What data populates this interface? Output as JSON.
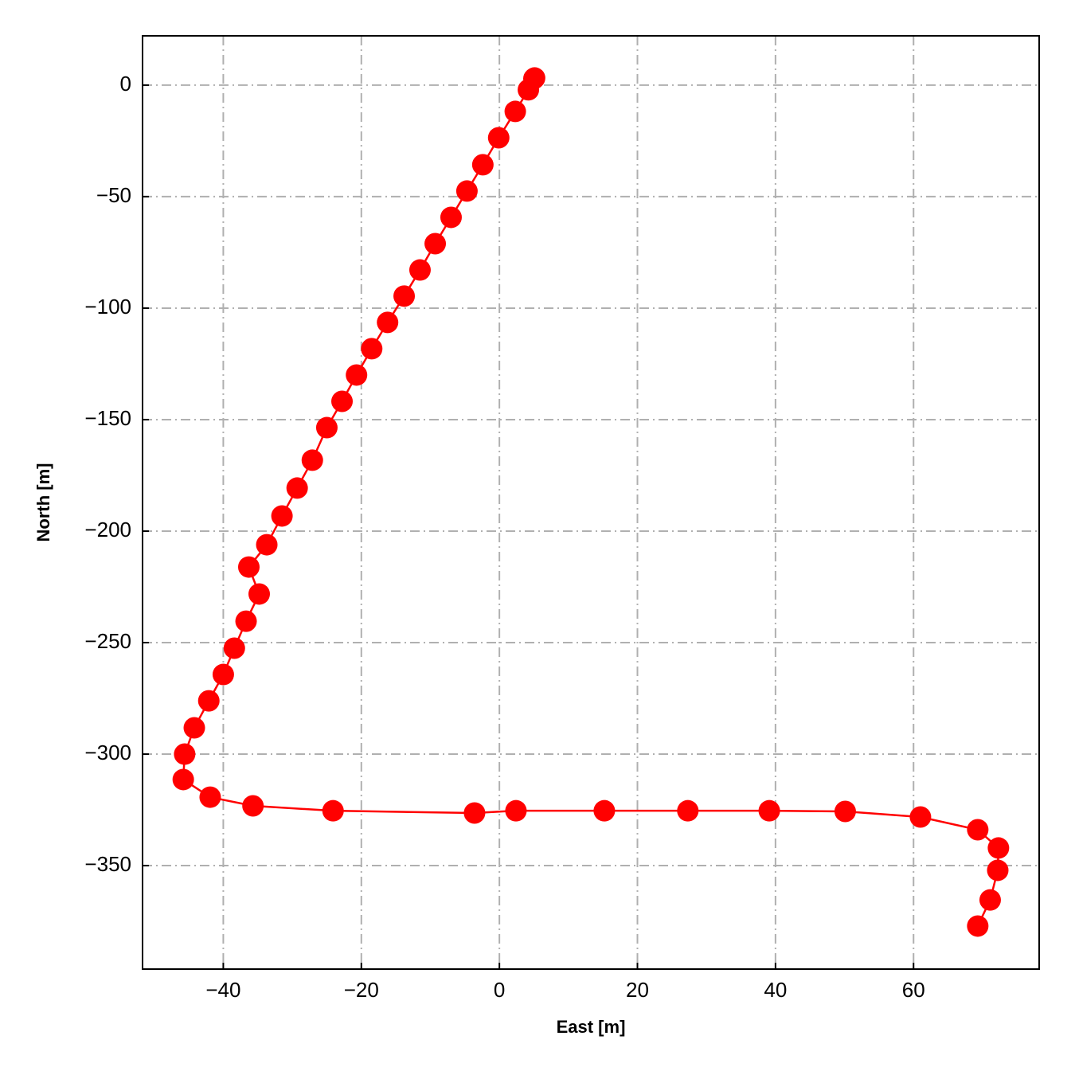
{
  "chart_data": {
    "type": "line",
    "x_label": "East [m]",
    "y_label": "North [m]",
    "x": [
      5.0,
      5.1,
      4.2,
      2.3,
      -0.1,
      -2.4,
      -4.7,
      -7.0,
      -9.3,
      -11.5,
      -13.8,
      -16.2,
      -18.5,
      -20.7,
      -22.8,
      -25.0,
      -27.1,
      -29.3,
      -31.5,
      -33.7,
      -36.3,
      -34.8,
      -36.7,
      -38.4,
      -40.0,
      -42.1,
      -44.2,
      -45.6,
      -45.8,
      -41.9,
      -35.7,
      -24.1,
      -3.6,
      2.4,
      15.2,
      27.3,
      39.1,
      50.1,
      61.0,
      69.3,
      72.3,
      72.2,
      71.1,
      69.3
    ],
    "values": [
      2.9,
      3.2,
      -2.1,
      -11.8,
      -23.6,
      -35.7,
      -47.5,
      -59.3,
      -71.1,
      -82.9,
      -94.6,
      -106.4,
      -118.2,
      -130.0,
      -141.8,
      -153.6,
      -168.2,
      -180.7,
      -193.2,
      -206.1,
      -216.1,
      -228.2,
      -240.4,
      -252.5,
      -264.3,
      -276.1,
      -288.2,
      -300.0,
      -311.4,
      -319.3,
      -323.2,
      -325.4,
      -326.4,
      -325.4,
      -325.4,
      -325.4,
      -325.4,
      -325.7,
      -328.2,
      -333.9,
      -342.1,
      -352.1,
      -365.4,
      -377.1
    ],
    "color": "#ff0000",
    "markers": true,
    "xlim": [
      -51.7,
      78.2
    ],
    "xticks": [
      {
        "value": -40,
        "label": "−40"
      },
      {
        "value": -20,
        "label": "−20"
      },
      0,
      20,
      40,
      60
    ],
    "ylim": [
      -396.4,
      22.1
    ],
    "yticks": [
      0,
      {
        "value": -50,
        "label": "−50"
      },
      {
        "value": -100,
        "label": "−100"
      },
      {
        "value": -150,
        "label": "−150"
      },
      {
        "value": -200,
        "label": "−200"
      },
      {
        "value": -250,
        "label": "−250"
      },
      {
        "value": -300,
        "label": "−300"
      },
      {
        "value": -350,
        "label": "−350"
      }
    ],
    "grid": true
  }
}
